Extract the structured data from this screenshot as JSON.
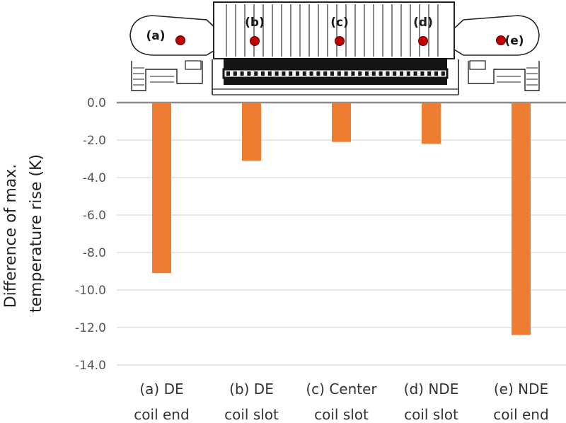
{
  "chart_data": {
    "type": "bar",
    "categories": [
      [
        "(a) DE",
        "coil end"
      ],
      [
        "(b) DE",
        "coil slot"
      ],
      [
        "(c) Center",
        "coil slot"
      ],
      [
        "(d) NDE",
        "coil slot"
      ],
      [
        "(e) NDE",
        "coil end"
      ]
    ],
    "values": [
      -9.1,
      -3.1,
      -2.1,
      -2.2,
      -12.4
    ],
    "ylabel": [
      "Difference of max.",
      "temperature rise (K)"
    ],
    "ylim": [
      -14,
      0
    ],
    "yticks": [
      "0.0",
      "-2.0",
      "-4.0",
      "-6.0",
      "-8.0",
      "-10.0",
      "-12.0",
      "-14.0"
    ],
    "grid": true,
    "bar_color": "#ED7D31",
    "callouts": [
      "(a)",
      "(b)",
      "(c)",
      "(d)",
      "(e)"
    ]
  },
  "colors": {
    "grid": "#d9d9d9",
    "marker": "#c00000",
    "drawing": "#222222"
  },
  "illustration": "motor-cross-section-icon"
}
